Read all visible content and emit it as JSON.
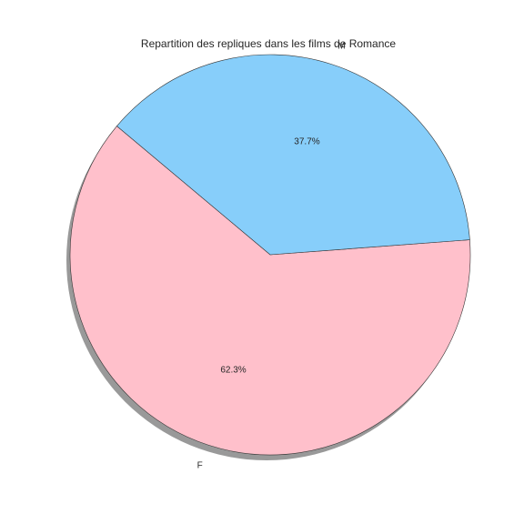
{
  "chart_data": {
    "type": "pie",
    "title": "Repartition des repliques dans les films de Romance",
    "slices": [
      {
        "label": "F",
        "value": 62.3,
        "pct_label": "62.3%",
        "color": "#FFC0CB"
      },
      {
        "label": "M",
        "value": 37.7,
        "pct_label": "37.7%",
        "color": "#87CEFA"
      }
    ],
    "start_angle_deg": 140,
    "shadow": true,
    "edge_color": "#333333",
    "shadow_color": "#999999"
  }
}
